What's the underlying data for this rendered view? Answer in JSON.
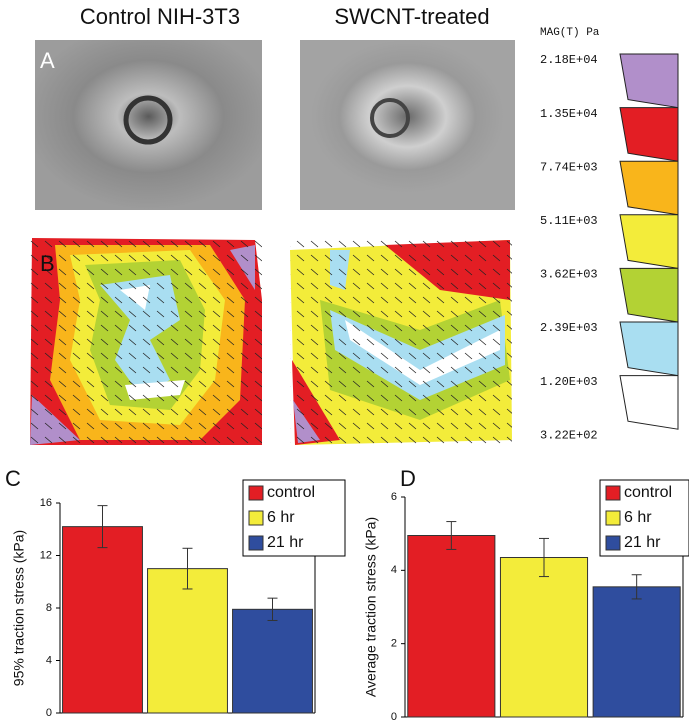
{
  "figure": {
    "images": [
      {
        "title": "Control NIH-3T3"
      },
      {
        "title": "SWCNT-treated"
      }
    ],
    "panel_labels": [
      "A",
      "B"
    ],
    "scale": {
      "title": "MAG(T) Pa",
      "labels": [
        "2.18E+04",
        "1.35E+04",
        "7.74E+03",
        "5.11E+03",
        "3.62E+03",
        "2.39E+03",
        "1.20E+03",
        "3.22E+02"
      ],
      "colors": [
        "#b18fca",
        "#e31e24",
        "#f9b51b",
        "#f3ec3a",
        "#b3d234",
        "#a9def1",
        "#ffffff"
      ]
    }
  },
  "chart_data": [
    {
      "type": "bar",
      "panel_label": "C",
      "y_label": "95% traction stress (kPa)",
      "categories": [
        "control",
        "6 hr",
        "21 hr"
      ],
      "values": [
        14.2,
        11.0,
        7.9
      ],
      "errors": [
        1.6,
        1.55,
        0.85
      ],
      "colors": [
        "#e31e24",
        "#f3ec3a",
        "#2f4d9e"
      ],
      "ylim": [
        0,
        16
      ],
      "yticks": [
        0,
        4,
        8,
        12,
        16
      ]
    },
    {
      "type": "bar",
      "panel_label": "D",
      "y_label": "Average  traction stress (kPa)",
      "categories": [
        "control",
        "6 hr",
        "21 hr"
      ],
      "values": [
        4.95,
        4.35,
        3.55
      ],
      "errors": [
        0.38,
        0.52,
        0.33
      ],
      "colors": [
        "#e31e24",
        "#f3ec3a",
        "#2f4d9e"
      ],
      "ylim": [
        0,
        6
      ],
      "yticks": [
        0,
        2,
        4,
        6
      ]
    }
  ]
}
